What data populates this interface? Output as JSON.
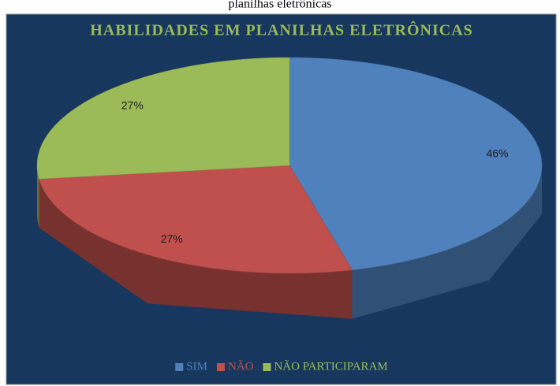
{
  "chart_data": {
    "type": "pie3d",
    "caption": "planilhas eletrônicas",
    "title": "HABILIDADES EM PLANILHAS ELETRÔNICAS",
    "categories": [
      "SIM",
      "NÃO",
      "NÃO PARTICIPARAM"
    ],
    "values": [
      46,
      27,
      27
    ],
    "value_labels": [
      "46%",
      "27%",
      "27%"
    ],
    "colors": [
      "#4f81bd",
      "#c0504d",
      "#9bbb59"
    ],
    "legend": "bottom"
  }
}
